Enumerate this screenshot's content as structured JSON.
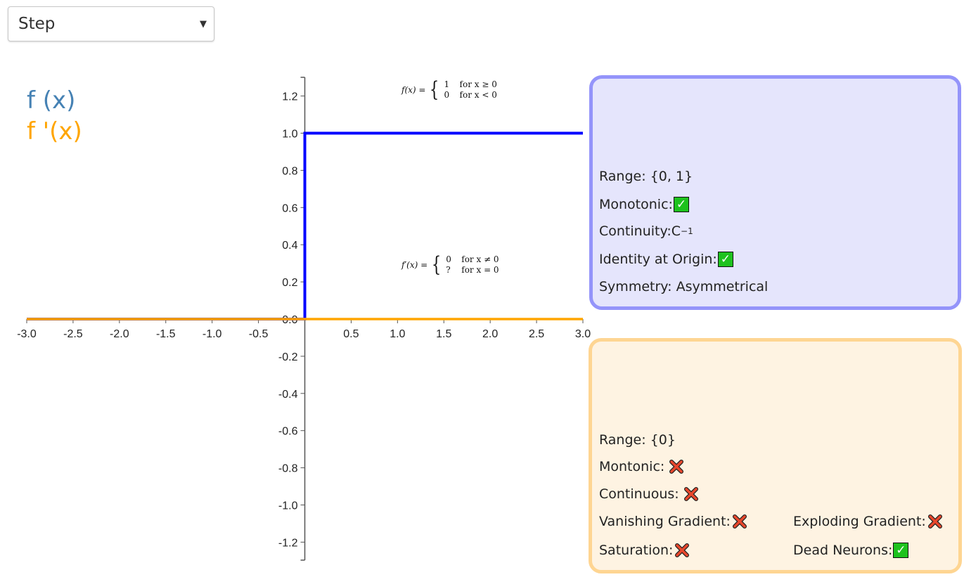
{
  "dropdown": {
    "selected": "Step",
    "caret": "▼"
  },
  "legend": {
    "f_label": "f (x)",
    "fp_label": "f '(x)",
    "f_color": "#4682b4",
    "fp_color": "#ffa500"
  },
  "formulas": {
    "f": {
      "lhs": "f(x) =",
      "case1_value": "1",
      "case1_cond": "for x ≥ 0",
      "case2_value": "0",
      "case2_cond": "for x < 0"
    },
    "fp": {
      "lhs": "f′(x) =",
      "case1_value": "0",
      "case1_cond": "for x ≠ 0",
      "case2_value": "?",
      "case2_cond": "for x = 0"
    }
  },
  "function_panel": {
    "range": "Range: {0, 1}",
    "monotonic_label": "Monotonic:",
    "monotonic": true,
    "continuity_label": "Continuity:C",
    "continuity_sup": "−1",
    "identity_label": "Identity at Origin:",
    "identity": true,
    "symmetry": "Symmetry: Asymmetrical"
  },
  "derivative_panel": {
    "range": "Range: {0}",
    "montonic_label": "Montonic:",
    "montonic": false,
    "continuous_label": "Continuous:",
    "continuous": false,
    "vanishing_label": "Vanishing Gradient:",
    "vanishing": false,
    "exploding_label": "Exploding Gradient:",
    "exploding": false,
    "saturation_label": "Saturation:",
    "saturation": false,
    "dead_label": "Dead Neurons:",
    "dead": true
  },
  "chart_data": {
    "type": "line",
    "xlim": [
      -3.0,
      3.0
    ],
    "ylim": [
      -1.3,
      1.3
    ],
    "x_ticks": [
      "-3.0",
      "-2.5",
      "-2.0",
      "-1.5",
      "-1.0",
      "-0.5",
      "0.5",
      "1.0",
      "1.5",
      "2.0",
      "2.5",
      "3.0"
    ],
    "x_tick_values": [
      -3.0,
      -2.5,
      -2.0,
      -1.5,
      -1.0,
      -0.5,
      0.5,
      1.0,
      1.5,
      2.0,
      2.5,
      3.0
    ],
    "y_ticks": [
      "1.2",
      "1.0",
      "0.8",
      "0.6",
      "0.4",
      "0.2",
      "0.0",
      "-0.2",
      "-0.4",
      "-0.6",
      "-0.8",
      "-1.0",
      "-1.2"
    ],
    "y_tick_values": [
      1.2,
      1.0,
      0.8,
      0.6,
      0.4,
      0.2,
      0.0,
      -0.2,
      -0.4,
      -0.6,
      -0.8,
      -1.0,
      -1.2
    ],
    "series": [
      {
        "color": "#0000ff",
        "x": [
          -3.0,
          0.0,
          0.0,
          3.0
        ],
        "y": [
          0.0,
          0.0,
          1.0,
          1.0
        ]
      },
      {
        "color": "#ffa500",
        "x": [
          -3.0,
          3.0
        ],
        "y": [
          0.0,
          0.0
        ]
      }
    ]
  }
}
